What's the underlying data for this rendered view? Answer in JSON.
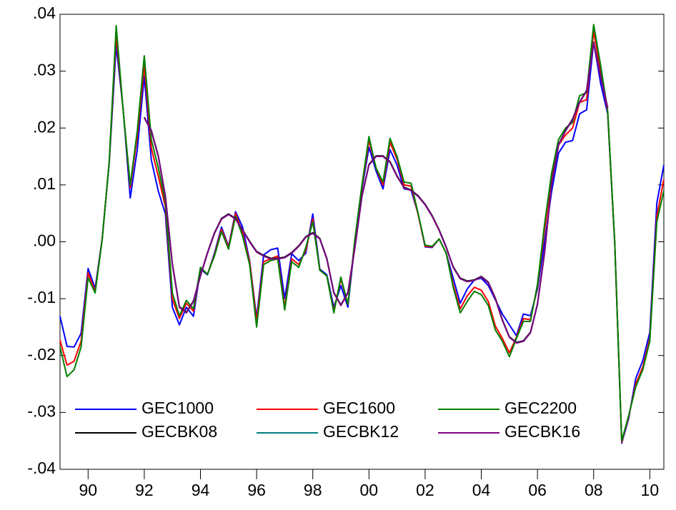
{
  "chart_data": {
    "type": "line",
    "x": [
      1989,
      1989.25,
      1989.5,
      1989.75,
      1990,
      1990.25,
      1990.5,
      1990.75,
      1991,
      1991.25,
      1991.5,
      1991.75,
      1992,
      1992.25,
      1992.5,
      1992.75,
      1993,
      1993.25,
      1993.5,
      1993.75,
      1994,
      1994.25,
      1994.5,
      1994.75,
      1995,
      1995.25,
      1995.5,
      1995.75,
      1996,
      1996.25,
      1996.5,
      1996.75,
      1997,
      1997.25,
      1997.5,
      1997.75,
      1998,
      1998.25,
      1998.5,
      1998.75,
      1999,
      1999.25,
      1999.5,
      1999.75,
      2000,
      2000.25,
      2000.5,
      2000.75,
      2001,
      2001.25,
      2001.5,
      2001.75,
      2002,
      2002.25,
      2002.5,
      2002.75,
      2003,
      2003.25,
      2003.5,
      2003.75,
      2004,
      2004.25,
      2004.5,
      2004.75,
      2005,
      2005.25,
      2005.5,
      2005.75,
      2006,
      2006.25,
      2006.5,
      2006.75,
      2007,
      2007.25,
      2007.5,
      2007.75,
      2008,
      2008.25,
      2008.5,
      2008.75,
      2009,
      2009.25,
      2009.5,
      2009.75,
      2010,
      2010.25,
      2010.5
    ],
    "series": [
      {
        "name": "GEC1000",
        "color": "#0000ff",
        "values": [
          -0.0131,
          -0.0184,
          -0.0185,
          -0.0161,
          -0.0047,
          -0.0082,
          0.0005,
          0.0137,
          0.0345,
          0.0232,
          0.0077,
          0.0162,
          0.0291,
          0.0144,
          0.0089,
          0.0049,
          -0.0115,
          -0.0146,
          -0.0115,
          -0.0131,
          -0.0048,
          -0.0058,
          -0.002,
          0.0026,
          -0.0008,
          0.0053,
          0.0026,
          -0.0033,
          -0.0134,
          -0.0023,
          -0.0014,
          -0.0011,
          -0.01,
          -0.0021,
          -0.0033,
          -0.002,
          0.0049,
          -0.0048,
          -0.0058,
          -0.0115,
          -0.0077,
          -0.0115,
          -0.0001,
          0.0093,
          0.0166,
          0.0125,
          0.0093,
          0.0162,
          0.0135,
          0.0093,
          0.0091,
          0.0049,
          -0.0009,
          -0.001,
          0.0005,
          -0.002,
          -0.0064,
          -0.0108,
          -0.0083,
          -0.0067,
          -0.0064,
          -0.0077,
          -0.0102,
          -0.0127,
          -0.0146,
          -0.0165,
          -0.0127,
          -0.013,
          -0.0083,
          -0.0001,
          0.0087,
          0.0156,
          0.0175,
          0.0178,
          0.0225,
          0.0232,
          0.0351,
          0.0278,
          0.0225,
          -0.0001,
          -0.0354,
          -0.031,
          -0.024,
          -0.0209,
          -0.0159,
          0.0068,
          0.0135
        ]
      },
      {
        "name": "GEC1600",
        "color": "#ff0000",
        "values": [
          -0.0173,
          -0.0217,
          -0.021,
          -0.0175,
          -0.0055,
          -0.0087,
          0.0004,
          0.014,
          0.0365,
          0.023,
          0.0095,
          0.0185,
          0.031,
          0.0165,
          0.0115,
          0.0062,
          -0.01,
          -0.0135,
          -0.0108,
          -0.0122,
          -0.0046,
          -0.0057,
          -0.0023,
          0.0022,
          -0.001,
          0.005,
          0.0015,
          -0.0035,
          -0.014,
          -0.0035,
          -0.003,
          -0.0025,
          -0.0115,
          -0.003,
          -0.004,
          -0.0015,
          0.004,
          -0.005,
          -0.006,
          -0.0122,
          -0.0065,
          -0.011,
          0.0003,
          0.0097,
          0.0178,
          0.013,
          0.01,
          0.0175,
          0.0145,
          0.01,
          0.0098,
          0.0048,
          -0.0008,
          -0.0009,
          0.0005,
          -0.002,
          -0.0075,
          -0.0118,
          -0.0095,
          -0.008,
          -0.0085,
          -0.0105,
          -0.0148,
          -0.017,
          -0.0195,
          -0.0168,
          -0.0135,
          -0.0137,
          -0.0078,
          0.002,
          0.011,
          0.017,
          0.0188,
          0.02,
          0.0245,
          0.025,
          0.037,
          0.03,
          0.0228,
          0,
          -0.0352,
          -0.0307,
          -0.025,
          -0.022,
          -0.017,
          0.0045,
          0.011
        ]
      },
      {
        "name": "GEC2200",
        "color": "#008000",
        "values": [
          -0.0185,
          -0.0237,
          -0.0225,
          -0.0185,
          -0.0063,
          -0.009,
          0.0003,
          0.014,
          0.038,
          0.023,
          0.01,
          0.0195,
          0.0327,
          0.018,
          0.013,
          0.007,
          -0.009,
          -0.013,
          -0.0103,
          -0.0118,
          -0.0045,
          -0.0057,
          -0.0025,
          0.0018,
          -0.0013,
          0.0045,
          0.001,
          -0.004,
          -0.015,
          -0.004,
          -0.0033,
          -0.003,
          -0.012,
          -0.0035,
          -0.0045,
          -0.001,
          0.0035,
          -0.005,
          -0.006,
          -0.0125,
          -0.0062,
          -0.011,
          0.0005,
          0.01,
          0.0185,
          0.013,
          0.0105,
          0.0182,
          0.015,
          0.0105,
          0.0103,
          0.005,
          -0.0006,
          -0.0008,
          0.0005,
          -0.002,
          -0.008,
          -0.0125,
          -0.0105,
          -0.0087,
          -0.0093,
          -0.0112,
          -0.0155,
          -0.0175,
          -0.0202,
          -0.017,
          -0.014,
          -0.014,
          -0.0075,
          0.003,
          0.012,
          0.018,
          0.02,
          0.021,
          0.0257,
          0.0262,
          0.0382,
          0.031,
          0.023,
          0,
          -0.035,
          -0.0305,
          -0.0255,
          -0.0225,
          -0.0175,
          0.0035,
          0.009
        ]
      },
      {
        "name": "GECBK08",
        "color": "#000000",
        "values": [
          null,
          null,
          null,
          null,
          null,
          null,
          null,
          null,
          null,
          null,
          null,
          null,
          0.0219,
          0.0196,
          0.0151,
          0.0081,
          -0.0039,
          -0.0114,
          -0.0124,
          -0.0104,
          -0.0059,
          -0.0019,
          0.0016,
          0.0041,
          0.0049,
          0.0041,
          0.0021,
          0.0001,
          -0.0017,
          -0.0024,
          -0.0029,
          -0.0029,
          -0.0027,
          -0.0019,
          -0.0007,
          0.0009,
          0.0016,
          0.0006,
          -0.0029,
          -0.0089,
          -0.0111,
          -0.0089,
          -0.0009,
          0.0081,
          0.0136,
          0.0151,
          0.0151,
          0.0141,
          0.0116,
          0.0096,
          0.0091,
          0.0081,
          0.0066,
          0.0046,
          0.0021,
          -0.0009,
          -0.0044,
          -0.0064,
          -0.0069,
          -0.0067,
          -0.0061,
          -0.0071,
          -0.0099,
          -0.0137,
          -0.0167,
          -0.0177,
          -0.0174,
          -0.0159,
          -0.0109,
          -0.0019,
          0.0101,
          0.0171,
          0.0196,
          0.0216,
          0.0246,
          0.0266,
          0.0351,
          0.0291,
          0.0236,
          null,
          null,
          null,
          null,
          null,
          null,
          null,
          null
        ]
      },
      {
        "name": "GECBK12",
        "color": "#008080",
        "values": [
          null,
          null,
          null,
          null,
          null,
          null,
          null,
          null,
          null,
          null,
          null,
          null,
          0.0218,
          0.0195,
          0.015,
          0.008,
          -0.004,
          -0.0115,
          -0.0125,
          -0.0105,
          -0.006,
          -0.002,
          0.0015,
          0.004,
          0.0048,
          0.004,
          0.002,
          0,
          -0.0018,
          -0.0025,
          -0.003,
          -0.003,
          -0.0028,
          -0.002,
          -0.0008,
          0.0008,
          0.0015,
          0.0005,
          -0.003,
          -0.009,
          -0.0112,
          -0.009,
          -0.001,
          0.008,
          0.0135,
          0.015,
          0.015,
          0.014,
          0.0115,
          0.0095,
          0.009,
          0.008,
          0.0065,
          0.0045,
          0.002,
          -0.001,
          -0.0045,
          -0.0065,
          -0.007,
          -0.0068,
          -0.0062,
          -0.0072,
          -0.01,
          -0.0138,
          -0.0168,
          -0.0178,
          -0.0175,
          -0.016,
          -0.011,
          -0.002,
          0.01,
          0.017,
          0.0195,
          0.0215,
          0.0245,
          0.0265,
          0.035,
          0.029,
          0.0235,
          null,
          null,
          null,
          null,
          null,
          null,
          null,
          null
        ]
      },
      {
        "name": "GECBK16",
        "color": "#800080",
        "values": [
          null,
          null,
          null,
          null,
          null,
          null,
          null,
          null,
          null,
          null,
          null,
          null,
          0.0218,
          0.0195,
          0.015,
          0.008,
          -0.004,
          -0.0115,
          -0.0125,
          -0.0105,
          -0.006,
          -0.002,
          0.0015,
          0.004,
          0.0048,
          0.004,
          0.002,
          0,
          -0.0018,
          -0.0025,
          -0.003,
          -0.003,
          -0.0028,
          -0.002,
          -0.0008,
          0.0008,
          0.0015,
          0.0005,
          -0.003,
          -0.009,
          -0.0112,
          -0.009,
          -0.001,
          0.008,
          0.0135,
          0.015,
          0.015,
          0.014,
          0.0115,
          0.0095,
          0.009,
          0.008,
          0.0065,
          0.0045,
          0.002,
          -0.001,
          -0.0045,
          -0.0065,
          -0.007,
          -0.0068,
          -0.0062,
          -0.0072,
          -0.01,
          -0.0138,
          -0.0168,
          -0.0178,
          -0.0175,
          -0.016,
          -0.011,
          -0.002,
          0.01,
          0.017,
          0.0195,
          0.0215,
          0.0245,
          0.0265,
          0.035,
          0.029,
          0.0235,
          null,
          null,
          null,
          null,
          null,
          null,
          null,
          null
        ]
      }
    ],
    "xlim": [
      1989,
      2010.5
    ],
    "xticks": [
      {
        "value": 1990,
        "label": "90"
      },
      {
        "value": 1992,
        "label": "92"
      },
      {
        "value": 1994,
        "label": "94"
      },
      {
        "value": 1996,
        "label": "96"
      },
      {
        "value": 1998,
        "label": "98"
      },
      {
        "value": 2000,
        "label": "00"
      },
      {
        "value": 2002,
        "label": "02"
      },
      {
        "value": 2004,
        "label": "04"
      },
      {
        "value": 2006,
        "label": "06"
      },
      {
        "value": 2008,
        "label": "08"
      },
      {
        "value": 2010,
        "label": "10"
      }
    ],
    "ylim": [
      -0.04,
      0.04
    ],
    "yticks": [
      {
        "value": -0.04,
        "label": "-.04"
      },
      {
        "value": -0.03,
        "label": "-.03"
      },
      {
        "value": -0.02,
        "label": "-.02"
      },
      {
        "value": -0.01,
        "label": "-.01"
      },
      {
        "value": 0,
        "label": ".00"
      },
      {
        "value": 0.01,
        "label": ".01"
      },
      {
        "value": 0.02,
        "label": ".02"
      },
      {
        "value": 0.03,
        "label": ".03"
      },
      {
        "value": 0.04,
        "label": ".04"
      }
    ],
    "legend": "lower-left"
  }
}
